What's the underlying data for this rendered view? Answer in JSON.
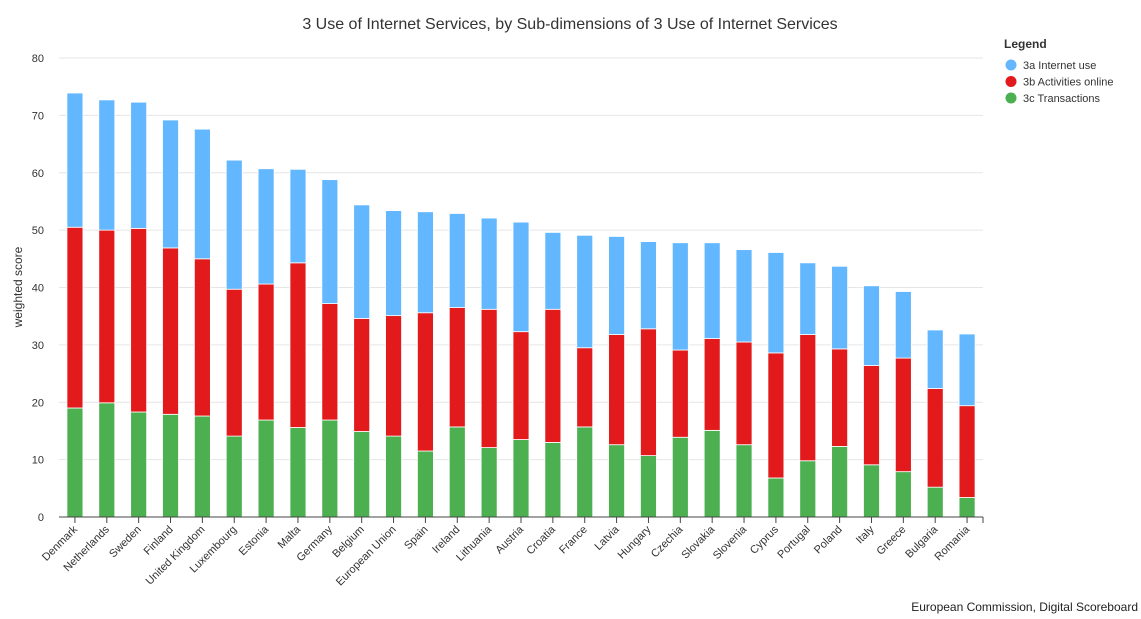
{
  "chart_data": {
    "type": "bar",
    "stacked": true,
    "title": "3 Use of Internet Services, by Sub-dimensions of 3 Use of Internet Services",
    "xlabel": "",
    "ylabel": "weighted score",
    "ylim": [
      0,
      80
    ],
    "yticks": [
      0,
      10,
      20,
      30,
      40,
      50,
      60,
      70,
      80
    ],
    "grid": true,
    "legend": {
      "title": "Legend",
      "position": "top-right"
    },
    "credit": "European Commission, Digital Scoreboard",
    "categories": [
      "Denmark",
      "Netherlands",
      "Sweden",
      "Finland",
      "United Kingdom",
      "Luxembourg",
      "Estonia",
      "Malta",
      "Germany",
      "Belgium",
      "European Union",
      "Spain",
      "Ireland",
      "Lithuania",
      "Austria",
      "Croatia",
      "France",
      "Latvia",
      "Hungary",
      "Czechia",
      "Slovakia",
      "Slovenia",
      "Cyprus",
      "Portugal",
      "Poland",
      "Italy",
      "Greece",
      "Bulgaria",
      "Romania"
    ],
    "series": [
      {
        "name": "3c Transactions",
        "color": "#4caf50",
        "values": [
          19.0,
          19.9,
          18.3,
          17.9,
          17.6,
          14.1,
          16.9,
          15.6,
          16.9,
          14.9,
          14.1,
          11.5,
          15.7,
          12.1,
          13.5,
          13.0,
          15.7,
          12.6,
          10.7,
          13.9,
          15.1,
          12.6,
          6.8,
          9.8,
          12.3,
          9.1,
          7.9,
          5.2,
          3.4
        ]
      },
      {
        "name": "3b Activities online",
        "color": "#e31a1c",
        "values": [
          31.5,
          30.1,
          32.0,
          29.0,
          27.4,
          25.6,
          23.7,
          28.7,
          20.3,
          19.7,
          21.0,
          24.1,
          20.8,
          24.1,
          18.8,
          23.2,
          13.8,
          19.2,
          22.1,
          15.2,
          16.0,
          17.9,
          21.8,
          22.0,
          17.0,
          17.3,
          19.8,
          17.2,
          16.0
        ]
      },
      {
        "name": "3a Internet use",
        "color": "#63b7ff",
        "values": [
          23.4,
          22.7,
          22.0,
          22.3,
          22.6,
          22.5,
          20.1,
          16.3,
          21.6,
          19.8,
          18.3,
          17.6,
          16.4,
          15.9,
          19.1,
          13.4,
          19.6,
          17.1,
          15.2,
          18.7,
          16.7,
          16.1,
          17.5,
          12.5,
          14.4,
          13.9,
          11.6,
          10.2,
          12.5
        ]
      }
    ]
  }
}
